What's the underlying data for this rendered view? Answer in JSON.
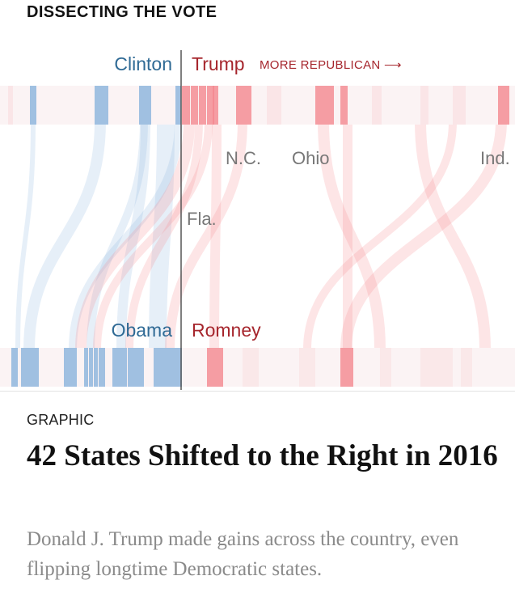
{
  "section": {
    "label": "DISSECTING THE VOTE"
  },
  "graphic": {
    "top_dem_label": "Clinton",
    "top_rep_label": "Trump",
    "direction_label": "MORE REPUBLICAN ⟶",
    "bottom_dem_label": "Obama",
    "bottom_rep_label": "Romney",
    "state_labels": [
      "N.C.",
      "Ohio",
      "Ind.",
      "Fla."
    ],
    "colors": {
      "democratic": "#8fb6dd",
      "republican": "#f4878e",
      "divider_line": "#555555"
    }
  },
  "article": {
    "kicker": "GRAPHIC",
    "headline": "42 States Shifted to the Right in 2016",
    "summary": "Donald J. Trump made gains across the country, even flipping longtime Democratic states."
  }
}
